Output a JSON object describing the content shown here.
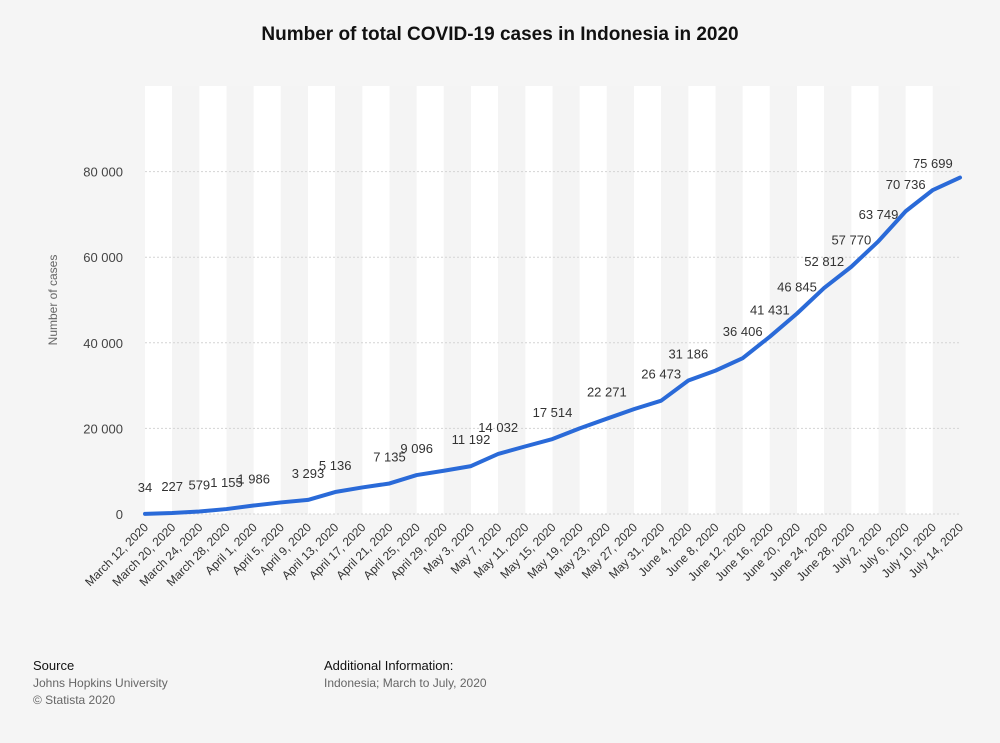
{
  "chart_data": {
    "type": "line",
    "title": "Number of total COVID-19 cases in Indonesia in 2020",
    "y_label": "Number of cases",
    "categories": [
      "March 12, 2020",
      "March 20, 2020",
      "March 24, 2020",
      "March 28, 2020",
      "April 1, 2020",
      "April 5, 2020",
      "April 9, 2020",
      "April 13, 2020",
      "April 17, 2020",
      "April 21, 2020",
      "April 25, 2020",
      "April 29, 2020",
      "May 3, 2020",
      "May 7, 2020",
      "May 11, 2020",
      "May 15, 2020",
      "May 19, 2020",
      "May 23, 2020",
      "May 27, 2020",
      "May 31, 2020",
      "June 4, 2020",
      "June 8, 2020",
      "June 12, 2020",
      "June 16, 2020",
      "June 20, 2020",
      "June 24, 2020",
      "June 28, 2020",
      "July 2, 2020",
      "July 6, 2020",
      "July 10, 2020",
      "July 14, 2020"
    ],
    "series": [
      {
        "name": "Number of cases",
        "color": "#2a6ad8",
        "values": [
          34,
          227,
          579,
          1155,
          1986,
          2700,
          3293,
          5136,
          6200,
          7135,
          9096,
          10100,
          11192,
          14032,
          15800,
          17514,
          20000,
          22271,
          24500,
          26473,
          31186,
          33500,
          36406,
          41431,
          46845,
          52812,
          57770,
          63749,
          70736,
          75699,
          78600
        ],
        "value_labels": [
          "34",
          "227",
          "579",
          "1 155",
          "1 986",
          null,
          "3 293",
          "5 136",
          null,
          "7 135",
          "9 096",
          null,
          "11 192",
          "14 032",
          null,
          "17 514",
          null,
          "22 271",
          null,
          "26 473",
          "31 186",
          null,
          "36 406",
          "41 431",
          "46 845",
          "52 812",
          "57 770",
          "63 749",
          "70 736",
          "75 699",
          null
        ]
      }
    ],
    "ylim": [
      0,
      100000
    ],
    "yticks": [
      0,
      {
        "value": 20000,
        "label": "20 000"
      },
      {
        "value": 40000,
        "label": "40 000"
      },
      {
        "value": 60000,
        "label": "60 000"
      },
      {
        "value": 80000,
        "label": "80 000"
      }
    ],
    "grid": true,
    "source_heading": "Source",
    "source_lines": [
      "Johns Hopkins University",
      "© Statista 2020"
    ],
    "info_heading": "Additional Information:",
    "info_lines": [
      "Indonesia; March to July, 2020"
    ]
  }
}
